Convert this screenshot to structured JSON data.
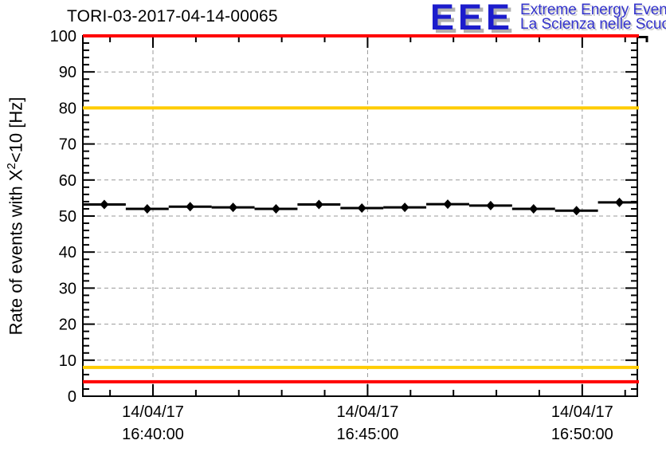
{
  "header": {
    "title": "TORI-03-2017-04-14-00065",
    "logo": {
      "letters": "EEE",
      "line1": "Extreme Energy Events",
      "line2": "La Scienza nelle Scuole",
      "letters_color": "#1c1ccc",
      "text_color": "#3333cc"
    }
  },
  "chart_data": {
    "type": "scatter",
    "title": "TORI-03-2017-04-14-00065",
    "ylabel": {
      "prefix": "Rate of events with X",
      "sup": "2",
      "suffix": "<10 [Hz]"
    },
    "ylim": [
      0,
      100
    ],
    "y_major_step": 10,
    "y_minor_step": 2,
    "x_start": "16:38:22",
    "x_end": "16:51:17",
    "x_minor_step_s": 60,
    "x_major_ticks": [
      {
        "date": "14/04/17",
        "time": "16:40:00"
      },
      {
        "date": "14/04/17",
        "time": "16:45:00"
      },
      {
        "date": "14/04/17",
        "time": "16:50:00"
      }
    ],
    "grid": true,
    "grid_color": "#999999",
    "series": [
      {
        "name": "rate",
        "marker": "diamond",
        "color": "#000000",
        "xerr_s": 30,
        "x": [
          "16:38:52",
          "16:39:52",
          "16:40:52",
          "16:41:52",
          "16:42:52",
          "16:43:52",
          "16:44:52",
          "16:45:52",
          "16:46:52",
          "16:47:52",
          "16:48:52",
          "16:49:52",
          "16:50:52"
        ],
        "y": [
          53.2,
          52.0,
          52.6,
          52.4,
          52.0,
          53.2,
          52.2,
          52.4,
          53.3,
          52.9,
          52.0,
          51.5,
          53.8
        ]
      }
    ],
    "thresholds": [
      {
        "value": 100,
        "color": "#ff0000"
      },
      {
        "value": 80,
        "color": "#ffcc00"
      },
      {
        "value": 8,
        "color": "#ffcc00"
      },
      {
        "value": 4,
        "color": "#ff0000"
      }
    ]
  }
}
